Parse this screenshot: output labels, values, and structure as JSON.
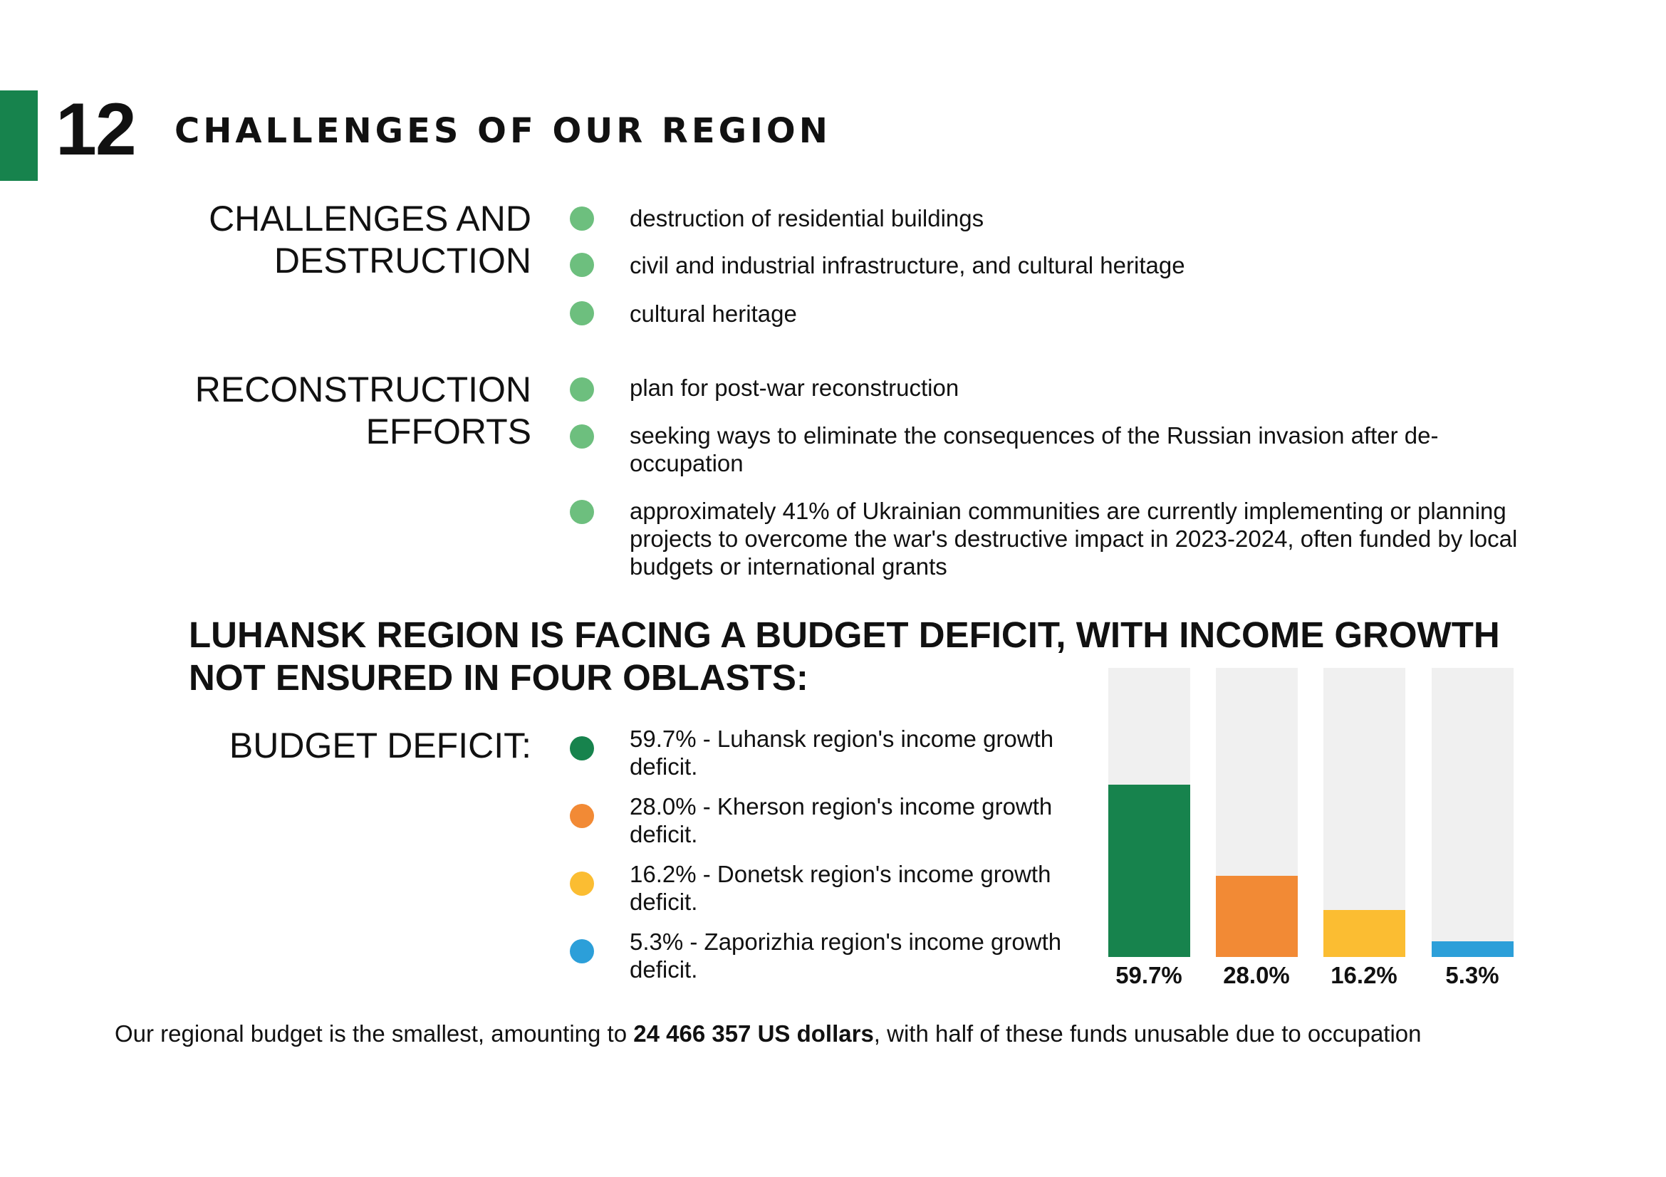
{
  "page": {
    "number": "12",
    "title": "CHALLENGES OF OUR REGION",
    "accent_color": "#17834d"
  },
  "challenges": {
    "label_line1": "CHALLENGES AND",
    "label_line2": "DESTRUCTION",
    "bullet_color": "#6dbf7e",
    "items": [
      "destruction of residential buildings",
      "civil and industrial infrastructure, and cultural heritage",
      "cultural heritage"
    ]
  },
  "reconstruction": {
    "label_line1": "RECONSTRUCTION",
    "label_line2": "EFFORTS",
    "bullet_color": "#6dbf7e",
    "items": [
      "plan for post-war reconstruction",
      "seeking ways to eliminate the consequences of the Russian invasion after de-occupation",
      "approximately 41% of Ukrainian communities are currently implementing or planning projects to overcome the war's destructive impact in 2023-2024, often funded by local budgets or international grants"
    ]
  },
  "budget": {
    "headline_line1": "LUHANSK REGION IS FACING A BUDGET DEFICIT, WITH INCOME GROWTH",
    "headline_line2": "NOT ENSURED IN FOUR OBLASTS:",
    "label": "BUDGET DEFICIT:",
    "legend": [
      {
        "text": "59.7% - Luhansk region's income growth deficit.",
        "color": "#17834d"
      },
      {
        "text": "28.0% - Kherson region's income growth deficit.",
        "color": "#f28a35"
      },
      {
        "text": "16.2% - Donetsk region's income growth deficit.",
        "color": "#fbbd32"
      },
      {
        "text": "5.3% - Zaporizhia region's income growth deficit.",
        "color": "#2c9fd9"
      }
    ]
  },
  "chart_data": {
    "type": "bar",
    "categories": [
      "Luhansk",
      "Kherson",
      "Donetsk",
      "Zaporizhia"
    ],
    "values": [
      59.7,
      28.0,
      16.2,
      5.3
    ],
    "data_labels": [
      "59.7%",
      "28.0%",
      "16.2%",
      "5.3%"
    ],
    "colors": [
      "#17834d",
      "#f28a35",
      "#fbbd32",
      "#2c9fd9"
    ],
    "track_color": "#f0f0f0",
    "ylim": [
      0,
      100
    ],
    "grid": false,
    "legend": "left"
  },
  "footer": {
    "text_before": "Our regional budget is the smallest, amounting to ",
    "bold": "24 466 357 US dollars",
    "text_after": ", with half of these funds unusable due to occupation"
  }
}
